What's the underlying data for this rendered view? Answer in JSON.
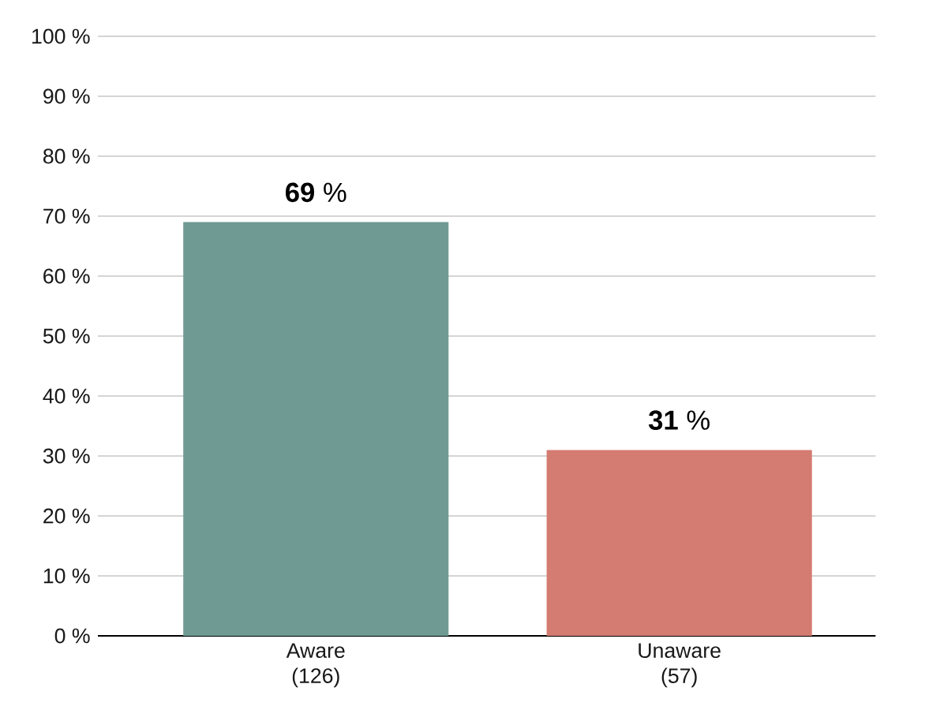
{
  "chart_data": {
    "type": "bar",
    "categories": [
      "Aware (126)",
      "Unaware (57)"
    ],
    "values": [
      69,
      31
    ],
    "colors": [
      "#6f9a93",
      "#d47b72"
    ],
    "value_labels": [
      "**69** %",
      "**31** %"
    ],
    "ylim": [
      0,
      100
    ],
    "yticks": [
      {
        "value": 0,
        "label": "0 %"
      },
      {
        "value": 10,
        "label": "10 %"
      },
      {
        "value": 20,
        "label": "20 %"
      },
      {
        "value": 30,
        "label": "30 %"
      },
      {
        "value": 40,
        "label": "40 %"
      },
      {
        "value": 50,
        "label": "50 %"
      },
      {
        "value": 60,
        "label": "60 %"
      },
      {
        "value": 70,
        "label": "70 %"
      },
      {
        "value": 80,
        "label": "80 %"
      },
      {
        "value": 90,
        "label": "90 %"
      },
      {
        "value": 100,
        "label": "100 %"
      }
    ],
    "grid": "y"
  }
}
